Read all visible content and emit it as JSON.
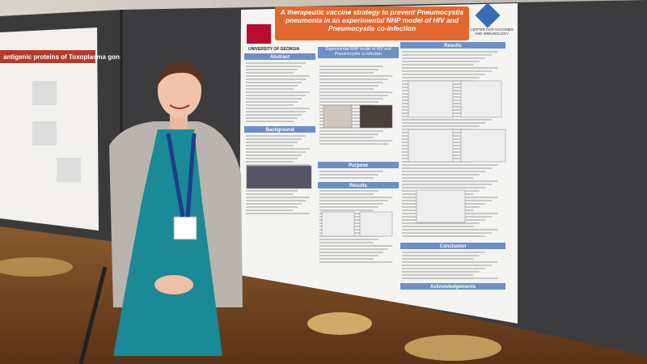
{
  "left_poster": {
    "title": "antigenic proteins of Toxoplasma gondii"
  },
  "poster": {
    "title": "A therapeutic vaccine strategy to prevent Pneumocystis pneumonia in an experimental NHP model of HIV and Pneumocystis co-infection",
    "logo_left": "UNIVERSITY OF GEORGIA",
    "logo_right": "CENTER FOR VACCINES AND IMMUNOLOGY",
    "panel_heading": "Experimental NHP model of HIV and Pneumocystis co-infection",
    "sections": [
      "Abstract",
      "Background",
      "Purpose",
      "Results",
      "Results",
      "Conclusion",
      "Acknowledgements"
    ]
  }
}
